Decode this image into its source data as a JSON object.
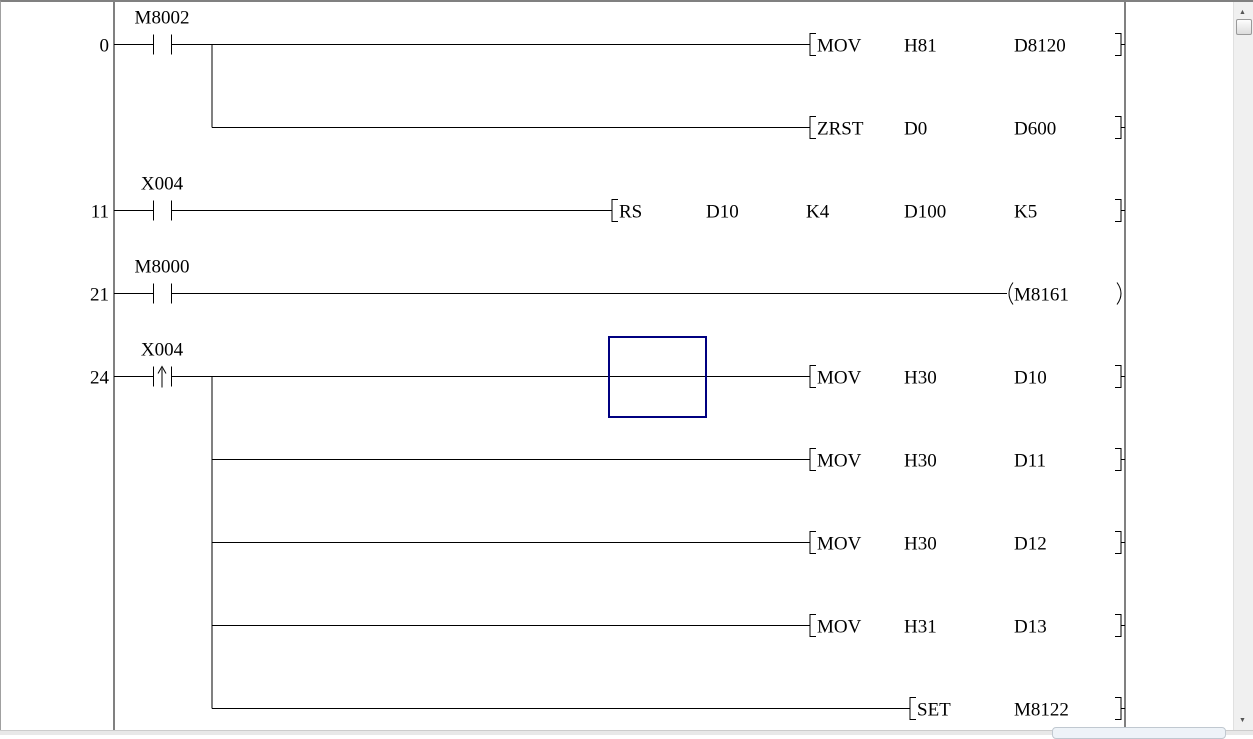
{
  "colors": {
    "cursor": "#000080",
    "line": "#000000"
  },
  "rows": [
    {
      "step": "0",
      "contact": {
        "label": "M8002",
        "type": "no"
      },
      "branch_start": true,
      "instr": [
        "MOV",
        "H81",
        "D8120"
      ]
    },
    {
      "branch": true,
      "instr": [
        "ZRST",
        "D0",
        "D600"
      ]
    },
    {
      "step": "11",
      "contact": {
        "label": "X004",
        "type": "no"
      },
      "instr": [
        "RS",
        "D10",
        "K4",
        "D100",
        "K5"
      ]
    },
    {
      "step": "21",
      "contact": {
        "label": "M8000",
        "type": "no"
      },
      "coil": "M8161"
    },
    {
      "step": "24",
      "contact": {
        "label": "X004",
        "type": "rising"
      },
      "branch_start": true,
      "instr": [
        "MOV",
        "H30",
        "D10"
      ],
      "cursor": true
    },
    {
      "branch": true,
      "instr": [
        "MOV",
        "H30",
        "D11"
      ]
    },
    {
      "branch": true,
      "instr": [
        "MOV",
        "H30",
        "D12"
      ]
    },
    {
      "branch": true,
      "instr": [
        "MOV",
        "H31",
        "D13"
      ]
    },
    {
      "branch": true,
      "branch_end": true,
      "instr": [
        "SET",
        "M8122"
      ]
    }
  ],
  "icons": {
    "scroll_up": "triangle-up-icon",
    "scroll_down": "triangle-down-icon"
  }
}
